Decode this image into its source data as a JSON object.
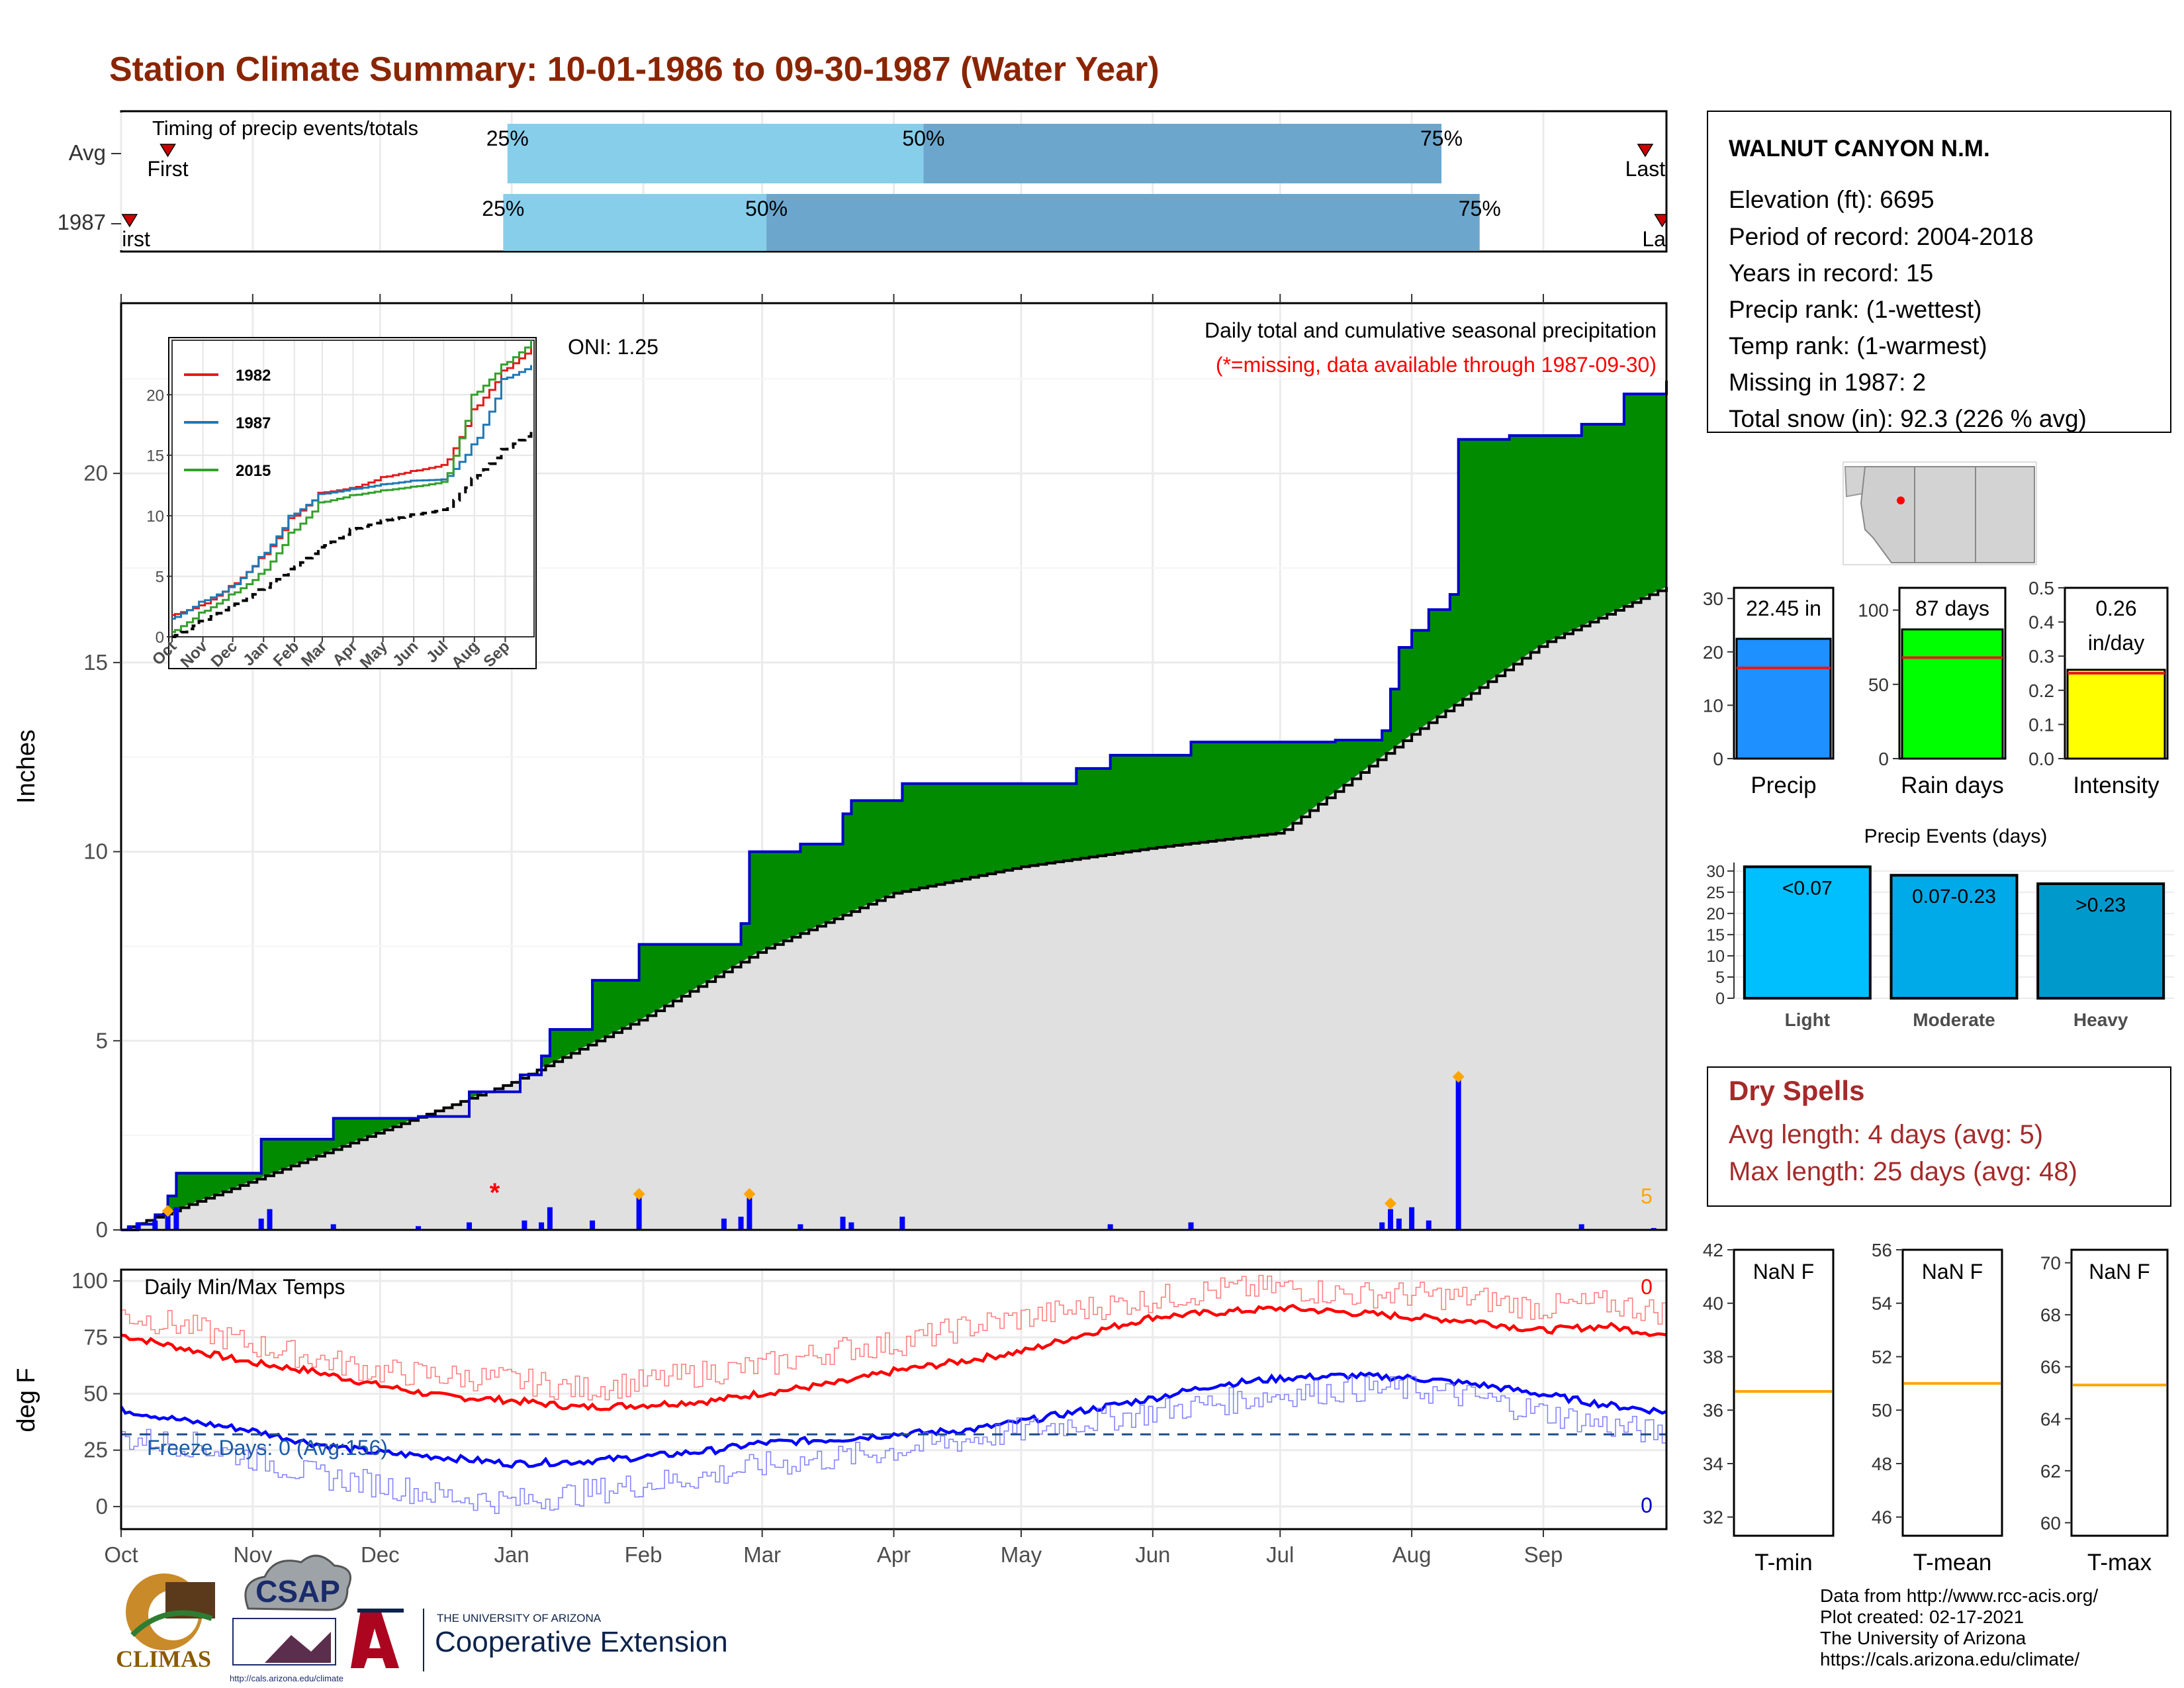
{
  "header": {
    "title": "Station Climate Summary: 10-01-1986 to 09-30-1987 (Water Year)",
    "title_color": "#8B2500"
  },
  "timing": {
    "caption": "Timing of precip events/totals",
    "rows": [
      {
        "label": "Avg",
        "first_label": "First",
        "last_label": "Last",
        "first": "1986-10-12",
        "p25": "1986-12-31",
        "p50": "1987-04-08",
        "p75": "1987-08-08",
        "last": "1987-09-25"
      },
      {
        "label": "1987",
        "first_label": "First",
        "last_label": "Last",
        "first": "1986-10-03",
        "p25": "1986-12-30",
        "p50": "1987-03-02",
        "p75": "1987-08-17",
        "last": "1987-09-29"
      }
    ],
    "pct_labels": [
      "25%",
      "50%",
      "75%"
    ],
    "colors": {
      "early": "#87CEEB",
      "late": "#6CA6CD",
      "marker": "#CC0000"
    }
  },
  "main_chart": {
    "ylabel": "Inches",
    "yticks": [
      0,
      5,
      10,
      15,
      20
    ],
    "ylim": [
      0,
      24.5
    ],
    "note1": "Daily total and cumulative seasonal precipitation",
    "note2": "(*=missing, data available through 1987-09-30)",
    "oni": "ONI: 1.25",
    "corner_count": "5",
    "colors": {
      "surplus": "#008B00",
      "normal_fill": "#E0E0E0",
      "cum_line": "#0000CC",
      "bar": "#0000FF",
      "marker": "#FFA500",
      "missing": "#FF0000"
    }
  },
  "chart_data": [
    {
      "type": "area",
      "title": "Daily total and cumulative seasonal precipitation",
      "ylabel": "Inches",
      "x_range": [
        "1986-10-01",
        "1987-09-30"
      ],
      "ylim": [
        0,
        24.5
      ],
      "series": [
        {
          "name": "1987",
          "x": [
            "1986-10-01",
            "1986-10-05",
            "1986-10-09",
            "1986-10-12",
            "1986-10-14",
            "1986-11-01",
            "1986-11-03",
            "1986-11-20",
            "1986-12-10",
            "1986-12-22",
            "1987-01-03",
            "1987-01-08",
            "1987-01-10",
            "1987-01-20",
            "1987-01-31",
            "1987-02-24",
            "1987-02-26",
            "1987-03-10",
            "1987-03-20",
            "1987-03-22",
            "1987-04-03",
            "1987-05-14",
            "1987-05-22",
            "1987-06-10",
            "1987-07-14",
            "1987-07-25",
            "1987-07-27",
            "1987-07-29",
            "1987-08-01",
            "1987-08-05",
            "1987-08-10",
            "1987-08-12",
            "1987-08-24",
            "1987-09-10",
            "1987-09-20",
            "1987-09-30"
          ],
          "values": [
            0,
            0.15,
            0.4,
            0.9,
            1.5,
            1.5,
            2.4,
            2.95,
            3.0,
            3.65,
            4.1,
            4.6,
            5.3,
            6.6,
            7.55,
            8.1,
            10.0,
            10.2,
            11.0,
            11.35,
            11.8,
            12.2,
            12.55,
            12.9,
            12.95,
            13.2,
            14.3,
            15.4,
            15.85,
            16.4,
            16.8,
            20.9,
            21.0,
            21.3,
            22.1,
            22.45
          ]
        },
        {
          "name": "Avg",
          "x": [
            "1986-10-01",
            "1986-11-01",
            "1986-12-01",
            "1987-01-01",
            "1987-02-01",
            "1987-03-01",
            "1987-04-01",
            "1987-05-01",
            "1987-06-01",
            "1987-07-01",
            "1987-08-01",
            "1987-09-01",
            "1987-09-30"
          ],
          "values": [
            0,
            1.3,
            2.6,
            3.9,
            5.6,
            7.4,
            8.9,
            9.6,
            10.1,
            10.5,
            13.1,
            15.5,
            17.0
          ]
        }
      ],
      "daily_bars": {
        "x": [
          "1986-10-03",
          "1986-10-05",
          "1986-10-09",
          "1986-10-12",
          "1986-10-14",
          "1986-11-03",
          "1986-11-05",
          "1986-11-20",
          "1986-12-10",
          "1986-12-22",
          "1987-01-04",
          "1987-01-08",
          "1987-01-10",
          "1987-01-20",
          "1987-01-31",
          "1987-02-20",
          "1987-02-24",
          "1987-02-26",
          "1987-03-10",
          "1987-03-20",
          "1987-03-22",
          "1987-04-03",
          "1987-05-22",
          "1987-06-10",
          "1987-07-25",
          "1987-07-27",
          "1987-07-29",
          "1987-08-01",
          "1987-08-05",
          "1987-08-12",
          "1987-09-10",
          "1987-09-27"
        ],
        "values": [
          0.12,
          0.2,
          0.25,
          0.5,
          0.6,
          0.3,
          0.55,
          0.15,
          0.1,
          0.2,
          0.25,
          0.2,
          0.6,
          0.25,
          0.9,
          0.3,
          0.35,
          0.85,
          0.15,
          0.35,
          0.2,
          0.35,
          0.15,
          0.2,
          0.2,
          0.55,
          0.3,
          0.6,
          0.25,
          4.05,
          0.15,
          0.05
        ]
      },
      "event_markers": {
        "x": [
          "1986-10-12",
          "1987-01-31",
          "1987-02-26",
          "1987-07-27",
          "1987-08-12"
        ],
        "values": [
          0.5,
          0.95,
          0.95,
          0.7,
          4.05
        ]
      },
      "missing_markers": {
        "x": [
          "1986-12-28"
        ],
        "values": [
          1.0
        ]
      }
    },
    {
      "type": "line",
      "title": "",
      "x_ticks": [
        "Oct",
        "Nov",
        "Dec",
        "Jan",
        "Feb",
        "Mar",
        "Apr",
        "May",
        "Jun",
        "Jul",
        "Aug",
        "Sep"
      ],
      "y_ticks": [
        0,
        5,
        10,
        15,
        20
      ],
      "ylim": [
        0,
        24.5
      ],
      "series": [
        {
          "name": "1982",
          "color": "#E31A1C",
          "x": [
            0,
            30,
            60,
            90,
            120,
            150,
            182,
            213,
            243,
            274,
            304,
            334,
            364
          ],
          "values": [
            1.8,
            2.6,
            4.2,
            6.5,
            9.8,
            11.9,
            12.3,
            13.2,
            13.7,
            14.2,
            18.8,
            22.0,
            24.0
          ]
        },
        {
          "name": "1987",
          "color": "#1F78B4",
          "x": [
            0,
            30,
            60,
            90,
            120,
            150,
            182,
            213,
            243,
            274,
            304,
            334,
            364
          ],
          "values": [
            1.5,
            2.9,
            4.1,
            6.6,
            10.0,
            11.8,
            12.2,
            12.6,
            12.9,
            13.0,
            15.9,
            21.3,
            22.45
          ]
        },
        {
          "name": "2015",
          "color": "#33A02C",
          "x": [
            0,
            30,
            60,
            90,
            120,
            150,
            182,
            213,
            243,
            274,
            304,
            334,
            364
          ],
          "values": [
            0.4,
            2.0,
            3.5,
            5.2,
            8.6,
            11.1,
            11.7,
            12.1,
            12.4,
            12.8,
            20.0,
            22.5,
            24.5
          ]
        },
        {
          "name": "Avg",
          "color": "#000000",
          "x": [
            0,
            30,
            60,
            90,
            120,
            150,
            182,
            213,
            243,
            274,
            304,
            334,
            364
          ],
          "values": [
            0.0,
            1.3,
            2.6,
            3.9,
            5.6,
            7.4,
            8.9,
            9.6,
            10.1,
            10.5,
            13.1,
            15.5,
            17.0
          ]
        }
      ]
    },
    {
      "type": "bar",
      "categories": [
        "Precip",
        "Rain days",
        "Intensity"
      ],
      "values": [
        22.45,
        87,
        0.26
      ],
      "labels": [
        "22.45 in",
        "87 days",
        "0.26\nin/day"
      ],
      "averages": [
        17.0,
        68,
        0.25
      ],
      "ylims": [
        [
          0,
          32
        ],
        [
          0,
          115
        ],
        [
          0,
          0.5
        ]
      ],
      "yticks": [
        [
          0,
          10,
          20,
          30
        ],
        [
          0,
          50,
          100
        ],
        [
          0.0,
          0.1,
          0.2,
          0.3,
          0.4,
          0.5
        ]
      ],
      "colors": [
        "#1E90FF",
        "#00FF00",
        "#FFFF00"
      ]
    },
    {
      "type": "bar",
      "title": "Precip Events (days)",
      "categories": [
        "Light",
        "Moderate",
        "Heavy"
      ],
      "values": [
        31,
        29,
        27
      ],
      "bar_labels": [
        "<0.07",
        "0.07-0.23",
        ">0.23"
      ],
      "yticks": [
        0,
        5,
        10,
        15,
        20,
        25,
        30
      ],
      "ylim": [
        0,
        32
      ],
      "colors": [
        "#00BFFF",
        "#00A9E8",
        "#0099CC"
      ]
    },
    {
      "type": "line",
      "title": "Daily Min/Max Temps",
      "ylabel": "deg F",
      "yticks": [
        0,
        25,
        50,
        75,
        100
      ],
      "ylim": [
        -10,
        105
      ],
      "x_ticks": [
        "Oct",
        "Nov",
        "Dec",
        "Jan",
        "Feb",
        "Mar",
        "Apr",
        "May",
        "Jun",
        "Jul",
        "Aug",
        "Sep"
      ],
      "freeze_line": 32,
      "series": [
        {
          "name": "Avg max",
          "color": "#FF0000",
          "x": [
            0,
            15,
            30,
            45,
            60,
            75,
            92,
            108,
            123,
            140,
            150,
            170,
            182,
            200,
            213,
            228,
            243,
            258,
            274,
            289,
            304,
            320,
            334,
            350,
            364
          ],
          "values": [
            76,
            70,
            64,
            60,
            54,
            49,
            47,
            44,
            45,
            47,
            50,
            55,
            60,
            65,
            69,
            77,
            84,
            86,
            88,
            86,
            84,
            82,
            78,
            80,
            76
          ]
        },
        {
          "name": "Avg min",
          "color": "#0000FF",
          "x": [
            0,
            15,
            30,
            45,
            60,
            75,
            92,
            108,
            123,
            140,
            150,
            170,
            182,
            200,
            213,
            228,
            243,
            258,
            274,
            289,
            304,
            320,
            334,
            350,
            364
          ],
          "values": [
            43,
            38,
            34,
            28,
            24,
            22,
            19,
            20,
            22,
            25,
            28,
            30,
            32,
            34,
            38,
            43,
            48,
            54,
            57,
            58,
            57,
            54,
            50,
            45,
            42
          ]
        },
        {
          "name": "Max",
          "color": "#FF6A6A",
          "x": [
            0,
            15,
            30,
            45,
            60,
            75,
            92,
            108,
            123,
            140,
            150,
            170,
            182,
            200,
            213,
            228,
            243,
            258,
            274,
            289,
            304,
            320,
            334,
            350,
            364
          ],
          "values": [
            85,
            80,
            72,
            66,
            60,
            58,
            56,
            52,
            55,
            60,
            62,
            70,
            72,
            80,
            84,
            88,
            92,
            96,
            97,
            94,
            94,
            92,
            88,
            90,
            86
          ]
        },
        {
          "name": "Min",
          "color": "#7070FF",
          "x": [
            0,
            15,
            30,
            45,
            60,
            75,
            92,
            108,
            123,
            140,
            150,
            170,
            182,
            200,
            213,
            228,
            243,
            258,
            274,
            289,
            304,
            320,
            334,
            350,
            364
          ],
          "values": [
            30,
            28,
            22,
            14,
            10,
            5,
            2,
            6,
            10,
            14,
            18,
            22,
            25,
            30,
            34,
            38,
            42,
            46,
            50,
            52,
            52,
            48,
            42,
            36,
            32
          ]
        }
      ],
      "freeze_label": "Freeze Days: 0 (Avg:156)",
      "max_count": "0",
      "min_count": "0"
    },
    {
      "type": "bar",
      "categories": [
        "T-min",
        "T-mean",
        "T-max"
      ],
      "labels": [
        "NaN F",
        "NaN F",
        "NaN F"
      ],
      "averages": [
        36.7,
        51.0,
        65.3
      ],
      "yticks": [
        [
          32,
          34,
          36,
          38,
          40,
          42
        ],
        [
          46,
          48,
          50,
          52,
          54,
          56
        ],
        [
          60,
          62,
          64,
          66,
          68,
          70
        ]
      ],
      "ylims": [
        [
          31.3,
          42.0
        ],
        [
          45.3,
          56.0
        ],
        [
          59.5,
          70.5
        ]
      ]
    }
  ],
  "info_box": {
    "station": "WALNUT CANYON N.M.",
    "lines": [
      "Elevation (ft): 6695",
      "Period of record: 2004-2018",
      "Years in record: 15",
      "Precip rank:  (1-wettest)",
      "Temp rank:  (1-warmest)",
      "Missing in 1987: 2",
      "Total snow (in): 92.3 (226 % avg)"
    ]
  },
  "dry_spells": {
    "title": "Dry Spells",
    "avg": "Avg length: 4 days (avg: 5)",
    "max": "Max length: 25 days (avg: 48)",
    "color": "#A52A2A"
  },
  "footer": {
    "credits": [
      "Data from http://www.rcc-acis.org/",
      "Plot created: 02-17-2021",
      "The University of Arizona",
      "https://cals.arizona.edu/climate/"
    ],
    "climas": "CLIMAS",
    "csap": "CSAP",
    "csap_url": "http://cals.arizona.edu/climate",
    "ua_small": "THE UNIVERSITY OF ARIZONA",
    "ua_big": "Cooperative Extension"
  }
}
